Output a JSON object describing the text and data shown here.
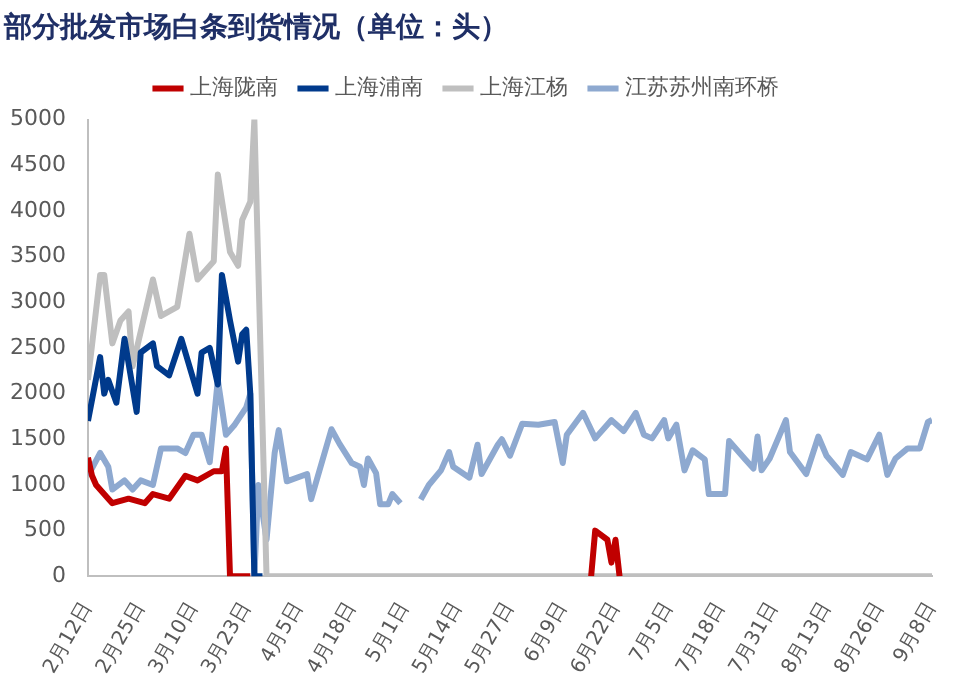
{
  "chart_data": {
    "type": "line",
    "title": "部分批发市场白条到货情况（单位：头）",
    "legend": "top",
    "marker": "none",
    "grid": false,
    "xlim": [
      "--02-12",
      "--09-08"
    ],
    "xticks": [
      {
        "value": "--02-12",
        "label": "2月12日"
      },
      {
        "value": "--02-25",
        "label": "2月25日"
      },
      {
        "value": "--03-10",
        "label": "3月10日"
      },
      {
        "value": "--03-23",
        "label": "3月23日"
      },
      {
        "value": "--04-05",
        "label": "4月5日"
      },
      {
        "value": "--04-18",
        "label": "4月18日"
      },
      {
        "value": "--05-01",
        "label": "5月1日"
      },
      {
        "value": "--05-14",
        "label": "5月14日"
      },
      {
        "value": "--05-27",
        "label": "5月27日"
      },
      {
        "value": "--06-09",
        "label": "6月9日"
      },
      {
        "value": "--06-22",
        "label": "6月22日"
      },
      {
        "value": "--07-05",
        "label": "7月5日"
      },
      {
        "value": "--07-18",
        "label": "7月18日"
      },
      {
        "value": "--07-31",
        "label": "7月31日"
      },
      {
        "value": "--08-13",
        "label": "8月13日"
      },
      {
        "value": "--08-26",
        "label": "8月26日"
      },
      {
        "value": "--09-08",
        "label": "9月8日"
      }
    ],
    "ylim": [
      0,
      5000
    ],
    "yticks": [
      0,
      500,
      1000,
      1500,
      2000,
      2500,
      3000,
      3500,
      4000,
      4500,
      5000
    ],
    "series": [
      {
        "name": "上海陇南",
        "color": "#c00000",
        "x": [
          "--02-12",
          "--02-13",
          "--02-14",
          "--02-17",
          "--02-18",
          "--02-22",
          "--02-26",
          "--02-28",
          "--03-04",
          "--03-08",
          "--03-11",
          "--03-15",
          "--03-17",
          "--03-18",
          "--03-19",
          "--03-24",
          "--03-26",
          "--06-16",
          "--06-17",
          "--06-20",
          "--06-21",
          "--06-22",
          "--06-23"
        ],
        "values": [
          1300,
          1100,
          1000,
          850,
          800,
          850,
          800,
          900,
          850,
          1100,
          1050,
          1150,
          1150,
          1400,
          0,
          0,
          null,
          0,
          500,
          400,
          150,
          400,
          0
        ]
      },
      {
        "name": "上海浦南",
        "color": "#003a8c",
        "x": [
          "--02-12",
          "--02-15",
          "--02-16",
          "--02-17",
          "--02-19",
          "--02-21",
          "--02-24",
          "--02-25",
          "--02-28",
          "--03-01",
          "--03-04",
          "--03-07",
          "--03-11",
          "--03-12",
          "--03-14",
          "--03-16",
          "--03-17",
          "--03-19",
          "--03-21",
          "--03-22",
          "--03-23",
          "--03-24",
          "--03-25",
          "--03-27"
        ],
        "values": [
          1700,
          2400,
          2000,
          2150,
          1900,
          2600,
          1800,
          2450,
          2550,
          2300,
          2200,
          2600,
          2000,
          2450,
          2500,
          2100,
          3300,
          2800,
          2350,
          2650,
          2700,
          2000,
          0,
          0
        ]
      },
      {
        "name": "上海江杨",
        "color": "#bfbfbf",
        "x": [
          "--02-12",
          "--02-15",
          "--02-16",
          "--02-18",
          "--02-20",
          "--02-22",
          "--02-23",
          "--02-28",
          "--03-02",
          "--03-06",
          "--03-09",
          "--03-11",
          "--03-15",
          "--03-16",
          "--03-19",
          "--03-21",
          "--03-22",
          "--03-24",
          "--03-25",
          "--03-28",
          "--09-08"
        ],
        "values": [
          2150,
          3300,
          3300,
          2550,
          2800,
          2900,
          2300,
          3250,
          2850,
          2950,
          3750,
          3250,
          3450,
          4400,
          3550,
          3400,
          3900,
          4100,
          5000,
          0,
          0
        ]
      },
      {
        "name": "江苏苏州南环桥",
        "color": "#8ea9d0",
        "x": [
          "--02-12",
          "--02-15",
          "--02-17",
          "--02-18",
          "--02-21",
          "--02-23",
          "--02-25",
          "--02-28",
          "--03-02",
          "--03-06",
          "--03-08",
          "--03-10",
          "--03-12",
          "--03-14",
          "--03-16",
          "--03-18",
          "--03-20",
          "--03-23",
          "--03-24",
          "--03-25",
          "--03-26",
          "--03-28",
          "--03-30",
          "--03-31",
          "--04-02",
          "--04-07",
          "--04-08",
          "--04-13",
          "--04-15",
          "--04-18",
          "--04-20",
          "--04-21",
          "--04-22",
          "--04-24",
          "--04-25",
          "--04-27",
          "--04-28",
          "--04-30",
          "--05-02",
          "--05-05",
          "--05-07",
          "--05-10",
          "--05-12",
          "--05-13",
          "--05-17",
          "--05-19",
          "--05-20",
          "--05-24",
          "--05-25",
          "--05-27",
          "--05-30",
          "--06-03",
          "--06-07",
          "--06-09",
          "--06-10",
          "--06-14",
          "--06-17",
          "--06-21",
          "--06-24",
          "--06-27",
          "--06-29",
          "--07-01",
          "--07-04",
          "--07-05",
          "--07-07",
          "--07-09",
          "--07-11",
          "--07-14",
          "--07-15",
          "--07-19",
          "--07-20",
          "--07-24",
          "--07-26",
          "--07-27",
          "--07-28",
          "--07-30",
          "--08-03",
          "--08-04",
          "--08-08",
          "--08-11",
          "--08-13",
          "--08-17",
          "--08-19",
          "--08-23",
          "--08-26",
          "--08-28",
          "--08-30",
          "--09-02",
          "--09-05",
          "--09-07",
          "--09-08"
        ],
        "values": [
          1100,
          1350,
          1200,
          950,
          1050,
          950,
          1050,
          1000,
          1400,
          1400,
          1350,
          1550,
          1550,
          1250,
          2150,
          1550,
          1650,
          1850,
          2000,
          0,
          1000,
          400,
          1350,
          1600,
          1040,
          1120,
          845,
          1610,
          1450,
          1240,
          1200,
          1000,
          1290,
          1130,
          790,
          790,
          900,
          800,
          null,
          840,
          1000,
          1160,
          1360,
          1200,
          1080,
          1440,
          1120,
          1440,
          1500,
          1320,
          1670,
          1660,
          1690,
          1240,
          1550,
          1790,
          1510,
          1710,
          1590,
          1790,
          1550,
          1510,
          1710,
          1510,
          1660,
          1160,
          1380,
          1280,
          900,
          900,
          1480,
          1280,
          1180,
          1530,
          1160,
          1290,
          1710,
          1360,
          1120,
          1530,
          1320,
          1110,
          1360,
          1280,
          1550,
          1110,
          1290,
          1400,
          1400,
          1690,
          1710
        ]
      }
    ]
  }
}
